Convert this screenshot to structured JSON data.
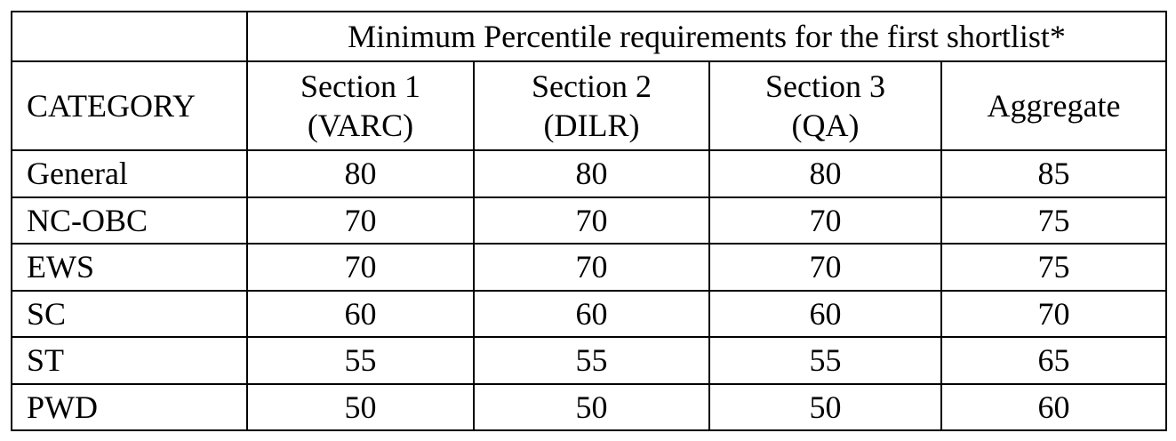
{
  "table": {
    "title": "Minimum Percentile requirements for the first shortlist*",
    "corner": "CATEGORY",
    "columns": [
      [
        "Section 1",
        "(VARC)"
      ],
      [
        "Section 2",
        "(DILR)"
      ],
      [
        "Section 3",
        "(QA)"
      ],
      [
        "Aggregate"
      ]
    ],
    "rows": [
      [
        "General",
        80,
        80,
        80,
        85
      ],
      [
        "NC-OBC",
        70,
        70,
        70,
        75
      ],
      [
        "EWS",
        70,
        70,
        70,
        75
      ],
      [
        "SC",
        60,
        60,
        60,
        70
      ],
      [
        "ST",
        55,
        55,
        55,
        65
      ],
      [
        "PWD",
        50,
        50,
        50,
        60
      ]
    ]
  }
}
